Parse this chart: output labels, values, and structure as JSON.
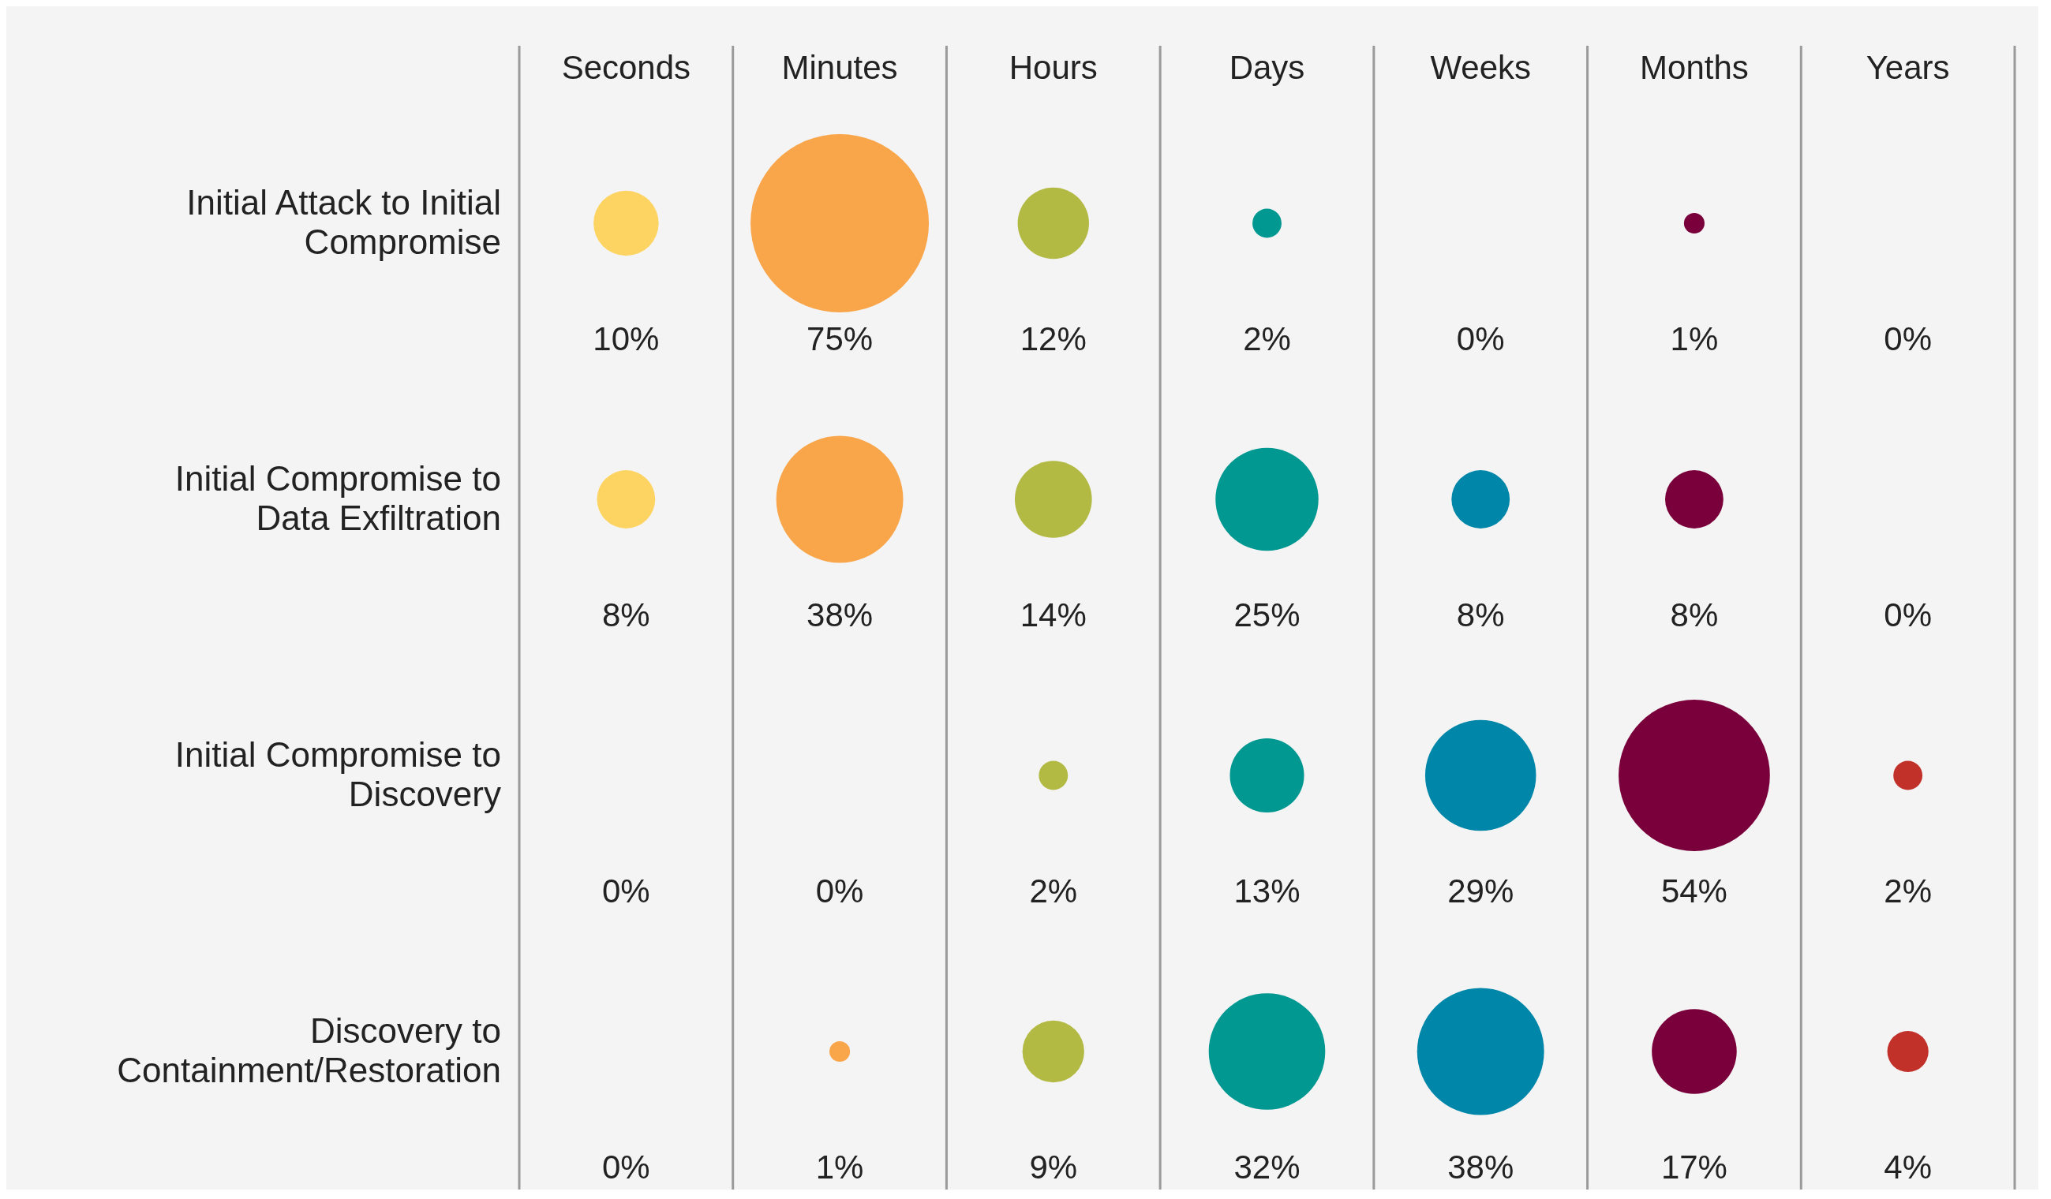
{
  "chart_data": {
    "type": "other",
    "categories": [
      "Seconds",
      "Minutes",
      "Hours",
      "Days",
      "Weeks",
      "Months",
      "Years"
    ],
    "series": [
      {
        "name": "Initial Attack to Initial Compromise",
        "colors": [
          "#fdd462",
          "#f9a54a",
          "#b3ba44",
          "#009891",
          "#0086a8",
          "#7a003c",
          "#c1312a"
        ],
        "values": [
          10,
          75,
          12,
          2,
          0,
          1,
          0
        ],
        "value_labels": [
          "10%",
          "75%",
          "12%",
          "2%",
          "0%",
          "1%",
          "0%"
        ]
      },
      {
        "name": "Initial Compromise to Data Exfiltration",
        "colors": [
          "#fdd462",
          "#f9a54a",
          "#b3ba44",
          "#009891",
          "#0086a8",
          "#7a003c",
          "#c1312a"
        ],
        "values": [
          8,
          38,
          14,
          25,
          8,
          8,
          0
        ],
        "value_labels": [
          "8%",
          "38%",
          "14%",
          "25%",
          "8%",
          "8%",
          "0%"
        ]
      },
      {
        "name": "Initial Compromise to Discovery",
        "colors": [
          "#fdd462",
          "#f9a54a",
          "#b3ba44",
          "#009891",
          "#0086a8",
          "#7a003c",
          "#c1312a"
        ],
        "values": [
          0,
          0,
          2,
          13,
          29,
          54,
          2
        ],
        "value_labels": [
          "0%",
          "0%",
          "2%",
          "13%",
          "29%",
          "54%",
          "2%"
        ]
      },
      {
        "name": "Discovery to Containment/Restoration",
        "colors": [
          "#fdd462",
          "#f9a54a",
          "#b3ba44",
          "#009891",
          "#0086a8",
          "#7a003c",
          "#c1312a"
        ],
        "values": [
          0,
          1,
          9,
          32,
          38,
          17,
          4
        ],
        "value_labels": [
          "0%",
          "1%",
          "9%",
          "32%",
          "38%",
          "17%",
          "4%"
        ]
      }
    ]
  }
}
